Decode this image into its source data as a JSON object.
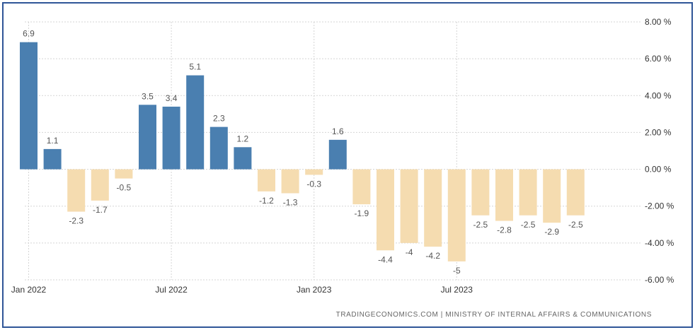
{
  "chart_data": {
    "type": "bar",
    "title": "",
    "xlabel": "",
    "ylabel": "",
    "categories": [
      "Jan 2022",
      "Feb 2022",
      "Mar 2022",
      "Apr 2022",
      "May 2022",
      "Jun 2022",
      "Jul 2022",
      "Aug 2022",
      "Sep 2022",
      "Oct 2022",
      "Nov 2022",
      "Dec 2022",
      "Jan 2023",
      "Feb 2023",
      "Mar 2023",
      "Apr 2023",
      "May 2023",
      "Jun 2023",
      "Jul 2023",
      "Aug 2023",
      "Sep 2023",
      "Oct 2023",
      "Nov 2023",
      "Dec 2023"
    ],
    "values": [
      6.9,
      1.1,
      -2.3,
      -1.7,
      -0.5,
      3.5,
      3.4,
      5.1,
      2.3,
      1.2,
      -1.2,
      -1.3,
      -0.3,
      1.6,
      -1.9,
      -4.4,
      -4,
      -4.2,
      -5,
      -2.5,
      -2.8,
      -2.5,
      -2.9,
      -2.5
    ],
    "value_labels": [
      "6.9",
      "1.1",
      "-2.3",
      "-1.7",
      "-0.5",
      "3.5",
      "3.4",
      "5.1",
      "2.3",
      "1.2",
      "-1.2",
      "-1.3",
      "-0.3",
      "1.6",
      "-1.9",
      "-4.4",
      "-4",
      "-4.2",
      "-5",
      "-2.5",
      "-2.8",
      "-2.5",
      "-2.9",
      "-2.5"
    ],
    "x_ticks": [
      {
        "index": 0,
        "label": "Jan 2022"
      },
      {
        "index": 6,
        "label": "Jul 2022"
      },
      {
        "index": 12,
        "label": "Jan 2023"
      },
      {
        "index": 18,
        "label": "Jul 2023"
      }
    ],
    "y_ticks": [
      {
        "value": 8,
        "label": "8.00 %"
      },
      {
        "value": 6,
        "label": "6.00 %"
      },
      {
        "value": 4,
        "label": "4.00 %"
      },
      {
        "value": 2,
        "label": "2.00 %"
      },
      {
        "value": 0,
        "label": "0.00 %"
      },
      {
        "value": -2,
        "label": "-2.00 %"
      },
      {
        "value": -4,
        "label": "-4.00 %"
      },
      {
        "value": -6,
        "label": "-6.00 %"
      }
    ],
    "ylim": [
      -6,
      8
    ],
    "y_axis_position": "right",
    "grid": true,
    "legend": "none",
    "colors": {
      "positive": "#4a7fb0",
      "negative": "#f5dcb0",
      "grid": "#d5d5d5"
    },
    "source": "TRADINGECONOMICS.COM  |  MINISTRY OF INTERNAL AFFAIRS & COMMUNICATIONS"
  }
}
